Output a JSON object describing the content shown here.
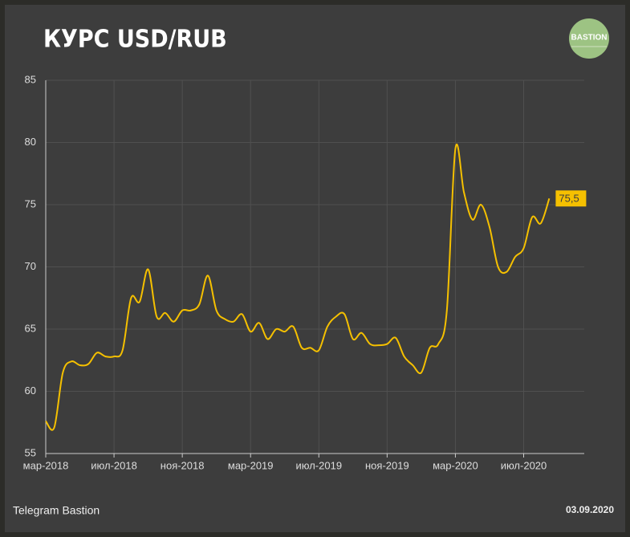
{
  "chart_data": {
    "type": "line",
    "title": "КУРС USD/RUB",
    "logo": "BASTION",
    "source": "Telegram Bastion",
    "date": "03.09.2020",
    "categories": [
      "мар-2018",
      null,
      null,
      null,
      null,
      null,
      null,
      null,
      "июл-2018",
      null,
      null,
      null,
      null,
      null,
      null,
      null,
      "ноя-2018",
      null,
      null,
      null,
      null,
      null,
      null,
      null,
      "мар-2019",
      null,
      null,
      null,
      null,
      null,
      null,
      null,
      "июл-2019",
      null,
      null,
      null,
      null,
      null,
      null,
      null,
      "ноя-2019",
      null,
      null,
      null,
      null,
      null,
      null,
      null,
      "мар-2020",
      null,
      null,
      null,
      null,
      null,
      null,
      null,
      "июл-2020",
      null,
      null,
      null
    ],
    "values": [
      57.6,
      57.1,
      61.5,
      62.4,
      62.1,
      62.2,
      63.1,
      62.8,
      62.8,
      63.3,
      67.5,
      67.2,
      69.8,
      66.0,
      66.3,
      65.6,
      66.5,
      66.5,
      67.0,
      69.3,
      66.5,
      65.8,
      65.6,
      66.2,
      64.8,
      65.5,
      64.2,
      65.0,
      64.8,
      65.2,
      63.5,
      63.5,
      63.3,
      65.2,
      66.0,
      66.2,
      64.2,
      64.7,
      63.8,
      63.7,
      63.8,
      64.3,
      62.8,
      62.1,
      61.5,
      63.5,
      63.8,
      66.5,
      79.5,
      76.0,
      73.8,
      75.0,
      73.2,
      70.0,
      69.6,
      70.8,
      71.5,
      74.0,
      73.5,
      75.5
    ],
    "value_labels": [
      null,
      null,
      null,
      null,
      null,
      null,
      null,
      null,
      null,
      null,
      null,
      null,
      null,
      null,
      null,
      null,
      null,
      null,
      null,
      null,
      null,
      null,
      null,
      null,
      null,
      null,
      null,
      null,
      null,
      null,
      null,
      null,
      null,
      null,
      null,
      null,
      null,
      null,
      null,
      null,
      null,
      null,
      null,
      null,
      null,
      null,
      null,
      null,
      null,
      null,
      null,
      null,
      null,
      null,
      null,
      null,
      null,
      null,
      null,
      "75,5"
    ],
    "color": "#f5c000",
    "ylim": [
      55,
      85
    ],
    "yticks": [
      55,
      60,
      65,
      70,
      75,
      80,
      85
    ],
    "grid": true
  }
}
